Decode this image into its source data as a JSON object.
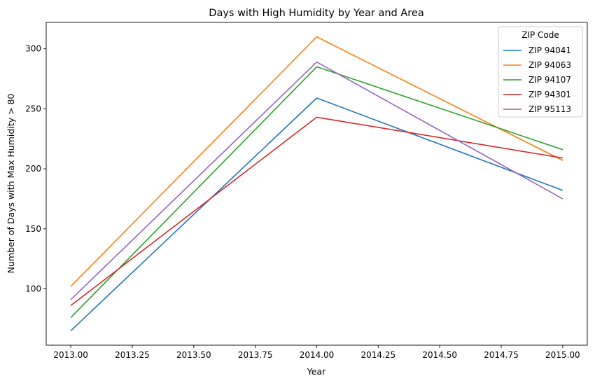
{
  "chart_data": {
    "type": "line",
    "title": "Days with High Humidity by Year and Area",
    "xlabel": "Year",
    "ylabel": "Number of Days with Max Humidity > 80",
    "x": [
      2013,
      2014,
      2015
    ],
    "xlim": [
      2012.9,
      2015.1
    ],
    "ylim": [
      53,
      322
    ],
    "x_ticks": [
      2013.0,
      2013.25,
      2013.5,
      2013.75,
      2014.0,
      2014.25,
      2014.5,
      2014.75,
      2015.0
    ],
    "x_tick_labels": [
      "2013.00",
      "2013.25",
      "2013.50",
      "2013.75",
      "2014.00",
      "2014.25",
      "2014.50",
      "2014.75",
      "2015.00"
    ],
    "y_ticks": [
      100,
      150,
      200,
      250,
      300
    ],
    "y_tick_labels": [
      "100",
      "150",
      "200",
      "250",
      "300"
    ],
    "grid": false,
    "legend": {
      "title": "ZIP Code",
      "position": "top-right"
    },
    "series": [
      {
        "name": "ZIP 94041",
        "color": "#1f77b4",
        "values": [
          65,
          259,
          182
        ]
      },
      {
        "name": "ZIP 94063",
        "color": "#ff7f0e",
        "values": [
          102,
          310,
          207
        ]
      },
      {
        "name": "ZIP 94107",
        "color": "#2ca02c",
        "values": [
          76,
          285,
          216
        ]
      },
      {
        "name": "ZIP 94301",
        "color": "#d62728",
        "values": [
          86,
          243,
          209
        ]
      },
      {
        "name": "ZIP 95113",
        "color": "#9467bd",
        "values": [
          91,
          289,
          175
        ]
      }
    ]
  }
}
